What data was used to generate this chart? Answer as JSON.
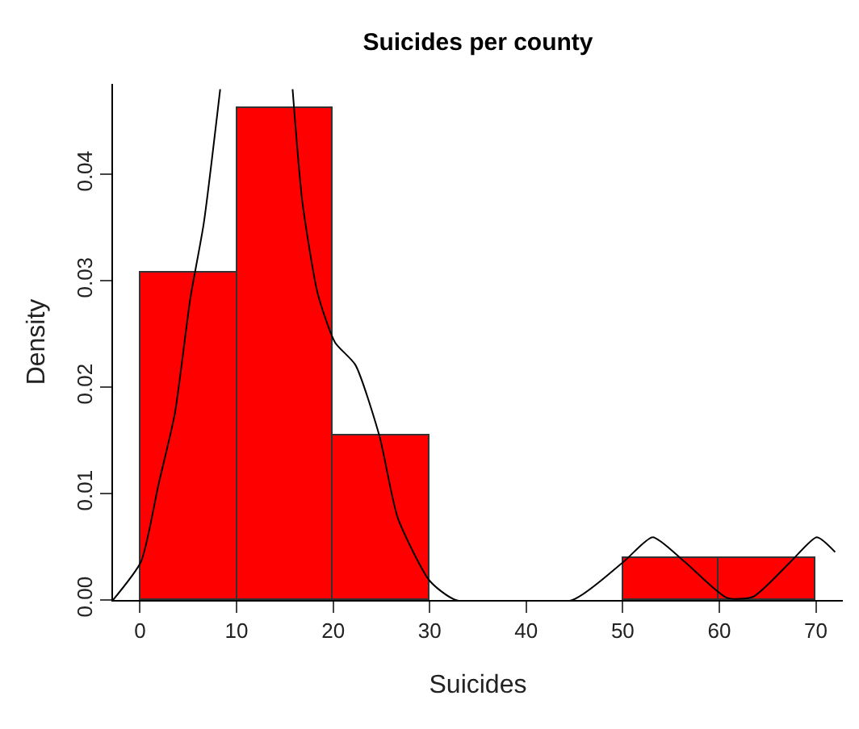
{
  "chart_data": {
    "type": "histogram",
    "title": "Suicides per county",
    "xlabel": "Suicides",
    "ylabel": "Density",
    "xlim": [
      -2.8,
      72.8
    ],
    "ylim": [
      0,
      0.0485
    ],
    "xticks": [
      0,
      10,
      20,
      30,
      40,
      50,
      60,
      70
    ],
    "yticks": [
      {
        "value": 0,
        "label": "0.00"
      },
      {
        "value": 0.01,
        "label": "0.01"
      },
      {
        "value": 0.02,
        "label": "0.02"
      },
      {
        "value": 0.03,
        "label": "0.03"
      },
      {
        "value": 0.04,
        "label": "0.04"
      }
    ],
    "grid": false,
    "series": [
      {
        "color": "#ff0000",
        "bins": [
          0,
          10,
          20,
          30,
          40,
          50,
          60,
          70
        ],
        "values": [
          0.0307,
          0.0462,
          0.0154,
          0,
          0,
          0.0039,
          0.0039
        ]
      },
      {
        "type": "line",
        "color": "#000000",
        "x": [
          -2.8,
          0.1,
          1.9,
          3.6,
          5.2,
          6.6,
          8.3,
          12,
          15.8,
          16.8,
          18.4,
          20.2,
          22.3,
          24.8,
          26.7,
          30,
          32.7,
          44.8,
          50.1,
          53.1,
          56.4,
          60.8,
          63.5,
          67.4,
          70.1,
          72
        ],
        "values": [
          0,
          0.0036,
          0.0108,
          0.0175,
          0.0283,
          0.0354,
          0.048,
          null,
          0.048,
          0.0375,
          0.0288,
          0.0242,
          0.0221,
          0.0154,
          0.0077,
          0.0018,
          0,
          0,
          0.0036,
          0.0059,
          0.0036,
          0.0002,
          0.0003,
          0.0036,
          0.0059,
          0.0045
        ]
      }
    ]
  }
}
